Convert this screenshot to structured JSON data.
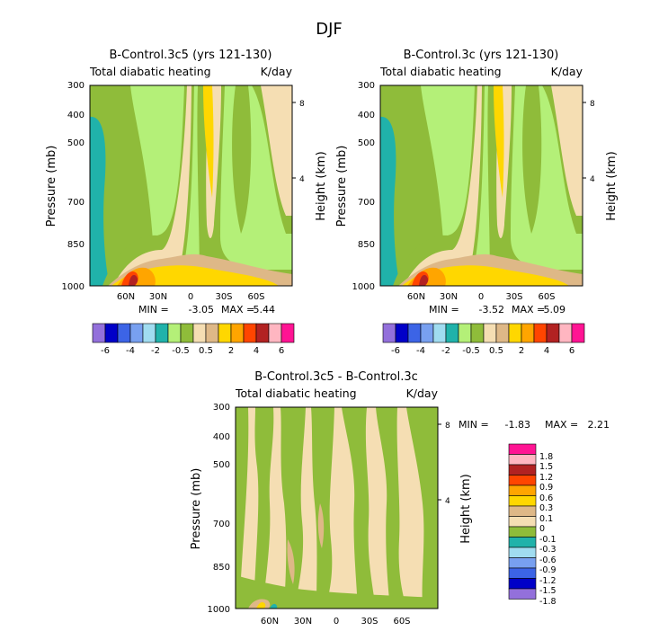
{
  "page_title": "DJF",
  "colors": {
    "abs_scale": [
      "#9370db",
      "#0000c8",
      "#3c64e6",
      "#78a0f0",
      "#a0dcf0",
      "#20b2aa",
      "#b4f078",
      "#8fbc3a",
      "#f5deb3",
      "#deb887",
      "#ffd700",
      "#ffa500",
      "#ff4500",
      "#b22222",
      "#ffb6c1",
      "#ff1493"
    ],
    "diff_scale": [
      "#9370db",
      "#0000c8",
      "#3c64e6",
      "#78a0f0",
      "#a0dcf0",
      "#20b2aa",
      "#8fbc3a",
      "#f5deb3",
      "#deb887",
      "#ffd700",
      "#ffa500",
      "#ff4500",
      "#b22222",
      "#ffb6c1",
      "#ff1493"
    ]
  },
  "chart_data": [
    {
      "type": "heatmap",
      "title": "B-Control.3c5 (yrs 121-130)",
      "variable": "Total diabatic heating",
      "units": "K/day",
      "ylabel": "Pressure (mb)",
      "ylabel_right": "Height (km)",
      "y_ticks": [
        "300",
        "400",
        "500",
        "700",
        "850",
        "1000"
      ],
      "y_ticks_right": [
        "8",
        "4"
      ],
      "x_ticks": [
        "60N",
        "30N",
        "0",
        "30S",
        "60S"
      ],
      "min_label": "MIN =",
      "min_value": "-3.05",
      "max_label": "MAX =",
      "max_value": "5.44",
      "legend_labels": [
        "-6",
        "-4",
        "-2",
        "-0.5",
        "0.5",
        "2",
        "4",
        "6"
      ]
    },
    {
      "type": "heatmap",
      "title": "B-Control.3c (yrs 121-130)",
      "variable": "Total diabatic heating",
      "units": "K/day",
      "ylabel": "Pressure (mb)",
      "ylabel_right": "Height (km)",
      "y_ticks": [
        "300",
        "400",
        "500",
        "700",
        "850",
        "1000"
      ],
      "y_ticks_right": [
        "8",
        "4"
      ],
      "x_ticks": [
        "60N",
        "30N",
        "0",
        "30S",
        "60S"
      ],
      "min_label": "MIN =",
      "min_value": "-3.52",
      "max_label": "MAX =",
      "max_value": "5.09",
      "legend_labels": [
        "-6",
        "-4",
        "-2",
        "-0.5",
        "0.5",
        "2",
        "4",
        "6"
      ]
    },
    {
      "type": "heatmap",
      "title": "B-Control.3c5 - B-Control.3c",
      "variable": "Total diabatic heating",
      "units": "K/day",
      "ylabel": "Pressure (mb)",
      "ylabel_right": "Height (km)",
      "y_ticks": [
        "300",
        "400",
        "500",
        "700",
        "850",
        "1000"
      ],
      "y_ticks_right": [
        "8",
        "4"
      ],
      "x_ticks": [
        "60N",
        "30N",
        "0",
        "30S",
        "60S"
      ],
      "min_label": "MIN =",
      "min_value": "-1.83",
      "max_label": "MAX =",
      "max_value": "2.21",
      "legend_labels": [
        "1.8",
        "1.5",
        "1.2",
        "0.9",
        "0.6",
        "0.3",
        "0.1",
        "0",
        "-0.1",
        "-0.3",
        "-0.6",
        "-0.9",
        "-1.2",
        "-1.5",
        "-1.8"
      ]
    }
  ]
}
